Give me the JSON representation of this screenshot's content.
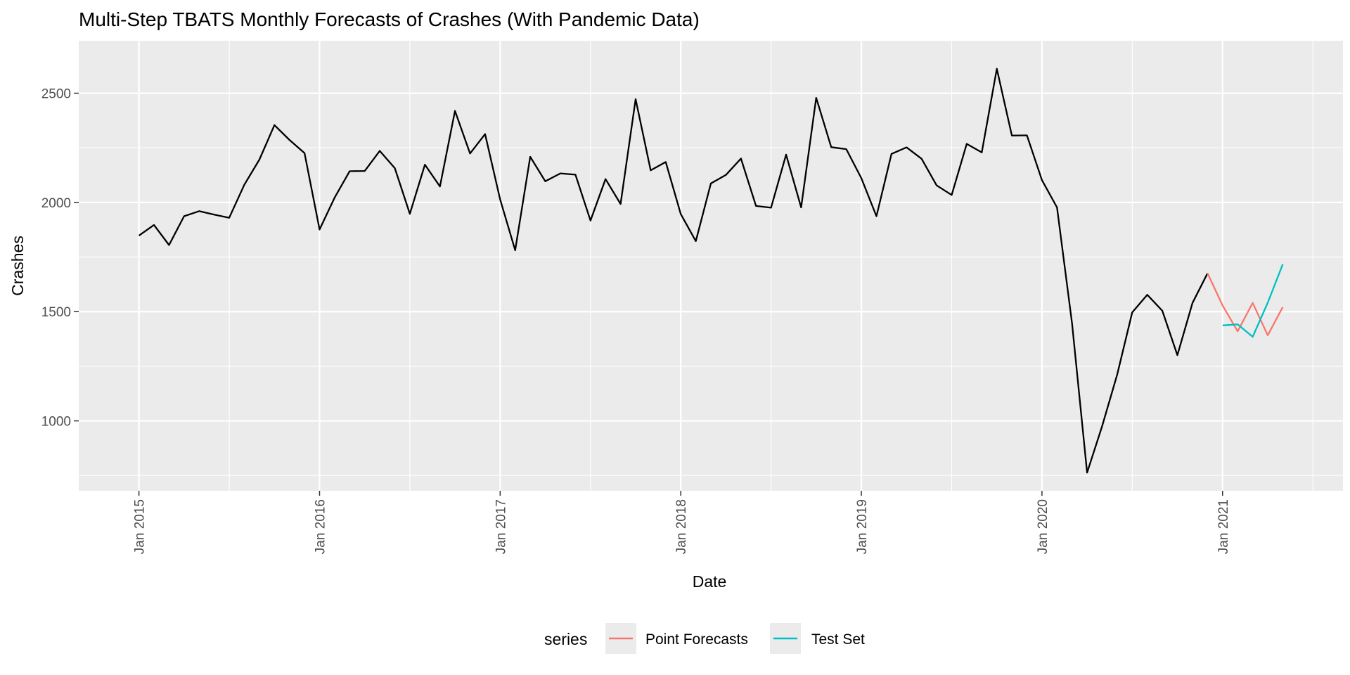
{
  "chart_data": {
    "type": "line",
    "title": "Multi-Step TBATS Monthly Forecasts of Crashes (With Pandemic Data)",
    "xlabel": "Date",
    "ylabel": "Crashes",
    "x_ticks": [
      "Jan 2015",
      "Jan 2016",
      "Jan 2017",
      "Jan 2018",
      "Jan 2019",
      "Jan 2020",
      "Jan 2021"
    ],
    "y_ticks": [
      1000,
      1500,
      2000,
      2500
    ],
    "xlim": [
      "2014-09",
      "2021-09"
    ],
    "ylim": [
      680,
      2740
    ],
    "grid": true,
    "legend": {
      "title": "series",
      "position": "bottom",
      "entries": [
        {
          "label": "Point Forecasts",
          "color": "#F8766D"
        },
        {
          "label": "Test Set",
          "color": "#00BFC4"
        }
      ]
    },
    "series": [
      {
        "color": "#000000",
        "x": [
          "2015-01",
          "2015-02",
          "2015-03",
          "2015-04",
          "2015-05",
          "2015-06",
          "2015-07",
          "2015-08",
          "2015-09",
          "2015-10",
          "2015-11",
          "2015-12",
          "2016-01",
          "2016-02",
          "2016-03",
          "2016-04",
          "2016-05",
          "2016-06",
          "2016-07",
          "2016-08",
          "2016-09",
          "2016-10",
          "2016-11",
          "2016-12",
          "2017-01",
          "2017-02",
          "2017-03",
          "2017-04",
          "2017-05",
          "2017-06",
          "2017-07",
          "2017-08",
          "2017-09",
          "2017-10",
          "2017-11",
          "2017-12",
          "2018-01",
          "2018-02",
          "2018-03",
          "2018-04",
          "2018-05",
          "2018-06",
          "2018-07",
          "2018-08",
          "2018-09",
          "2018-10",
          "2018-11",
          "2018-12",
          "2019-01",
          "2019-02",
          "2019-03",
          "2019-04",
          "2019-05",
          "2019-06",
          "2019-07",
          "2019-08",
          "2019-09",
          "2019-10",
          "2019-11",
          "2019-12",
          "2020-01",
          "2020-02",
          "2020-03",
          "2020-04",
          "2020-05",
          "2020-06",
          "2020-07",
          "2020-08",
          "2020-09",
          "2020-10",
          "2020-11",
          "2020-12"
        ],
        "values": [
          1848,
          1897,
          1805,
          1937,
          1960,
          1944,
          1930,
          2081,
          2196,
          2354,
          2286,
          2226,
          1876,
          2022,
          2143,
          2144,
          2236,
          2157,
          1948,
          2173,
          2073,
          2419,
          2224,
          2313,
          2014,
          1781,
          2209,
          2097,
          2133,
          2127,
          1917,
          2107,
          1993,
          2473,
          2147,
          2185,
          1947,
          1823,
          2087,
          2126,
          2201,
          1984,
          1976,
          2219,
          1977,
          2479,
          2253,
          2244,
          2111,
          1937,
          2222,
          2252,
          2200,
          2078,
          2034,
          2268,
          2229,
          2612,
          2306,
          2307,
          2102,
          1977,
          1446,
          763,
          976,
          1212,
          1497,
          1577,
          1504,
          1301,
          1540,
          1676
        ]
      },
      {
        "name": "Point Forecasts",
        "color": "#F8766D",
        "x": [
          "2020-12",
          "2021-01",
          "2021-02",
          "2021-03",
          "2021-04",
          "2021-05"
        ],
        "values": [
          1676,
          1528,
          1410,
          1540,
          1392,
          1521
        ]
      },
      {
        "name": "Test Set",
        "color": "#00BFC4",
        "x": [
          "2021-01",
          "2021-02",
          "2021-03",
          "2021-04",
          "2021-05"
        ],
        "values": [
          1437,
          1442,
          1385,
          1541,
          1717
        ]
      }
    ]
  }
}
